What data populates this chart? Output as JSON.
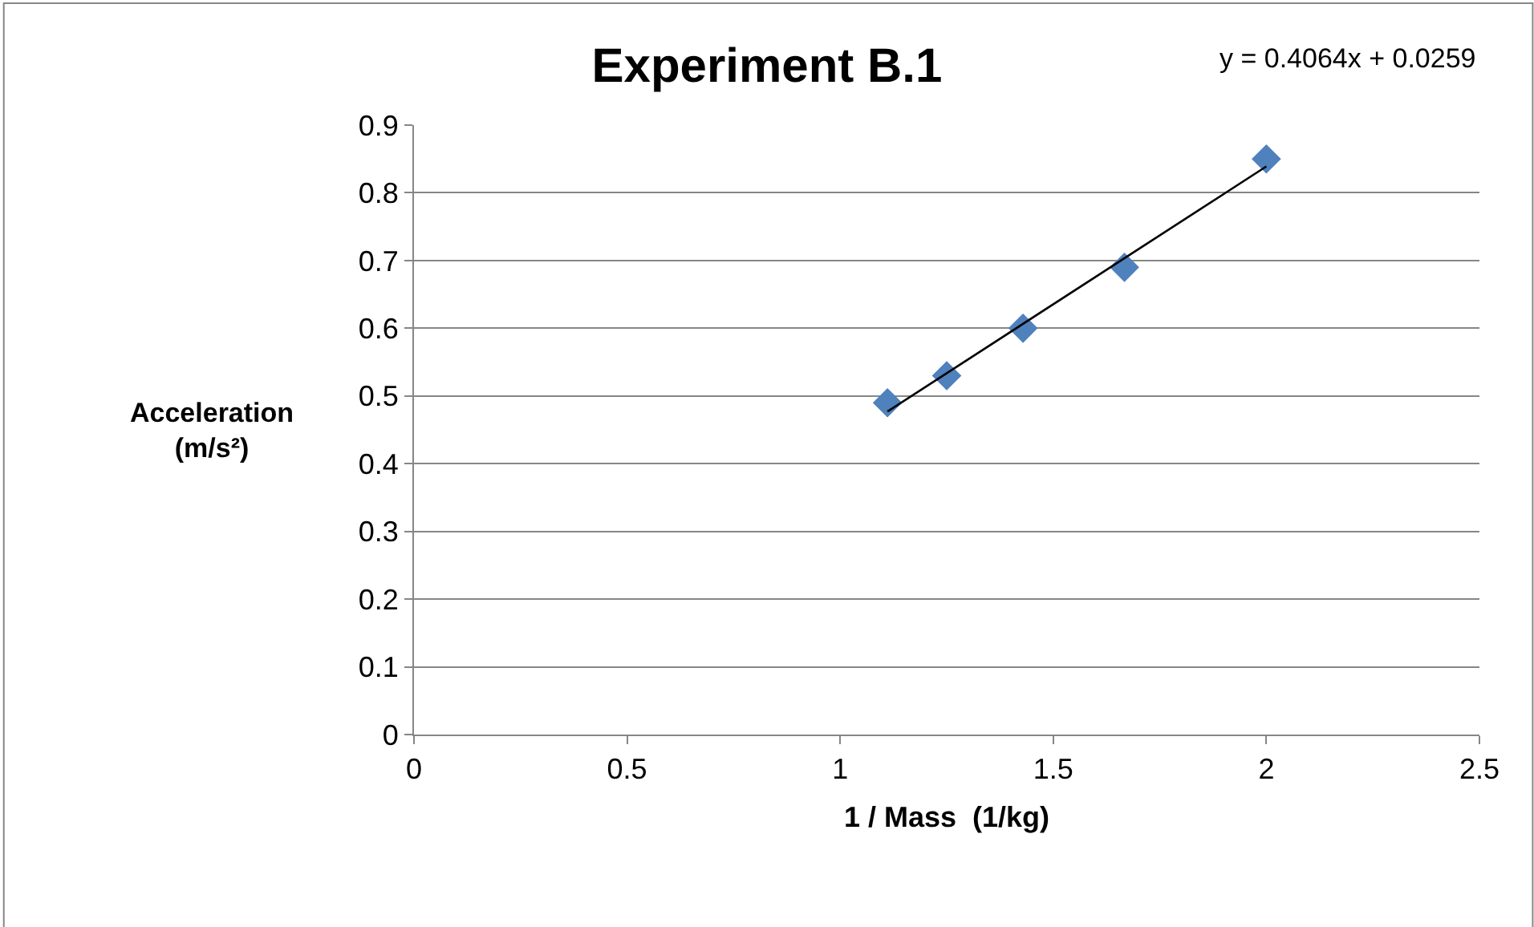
{
  "chart_data": {
    "type": "scatter",
    "title": "Experiment B.1",
    "xlabel": "1 / Mass  (1/kg)",
    "ylabel": "Acceleration (m/s²)",
    "annotations": [
      "y = 0.4064x + 0.0259"
    ],
    "marker": "diamond",
    "grid": "y",
    "xlim": [
      0,
      2.5
    ],
    "xticks": [
      0,
      0.5,
      1,
      1.5,
      2,
      2.5
    ],
    "ylim": [
      0,
      0.9
    ],
    "yticks": [
      0,
      0.1,
      0.2,
      0.3,
      0.4,
      0.5,
      0.6,
      0.7,
      0.8,
      0.9
    ],
    "series": [
      {
        "color": "#4f81bd",
        "x": [
          1.111,
          1.25,
          1.429,
          1.667,
          2.0
        ],
        "values": [
          0.49,
          0.53,
          0.6,
          0.69,
          0.85
        ]
      },
      {
        "type": "line",
        "color": "#000000",
        "marker": "none",
        "x": [
          1.111,
          2.0
        ],
        "values": [
          0.477,
          0.839
        ]
      }
    ]
  }
}
